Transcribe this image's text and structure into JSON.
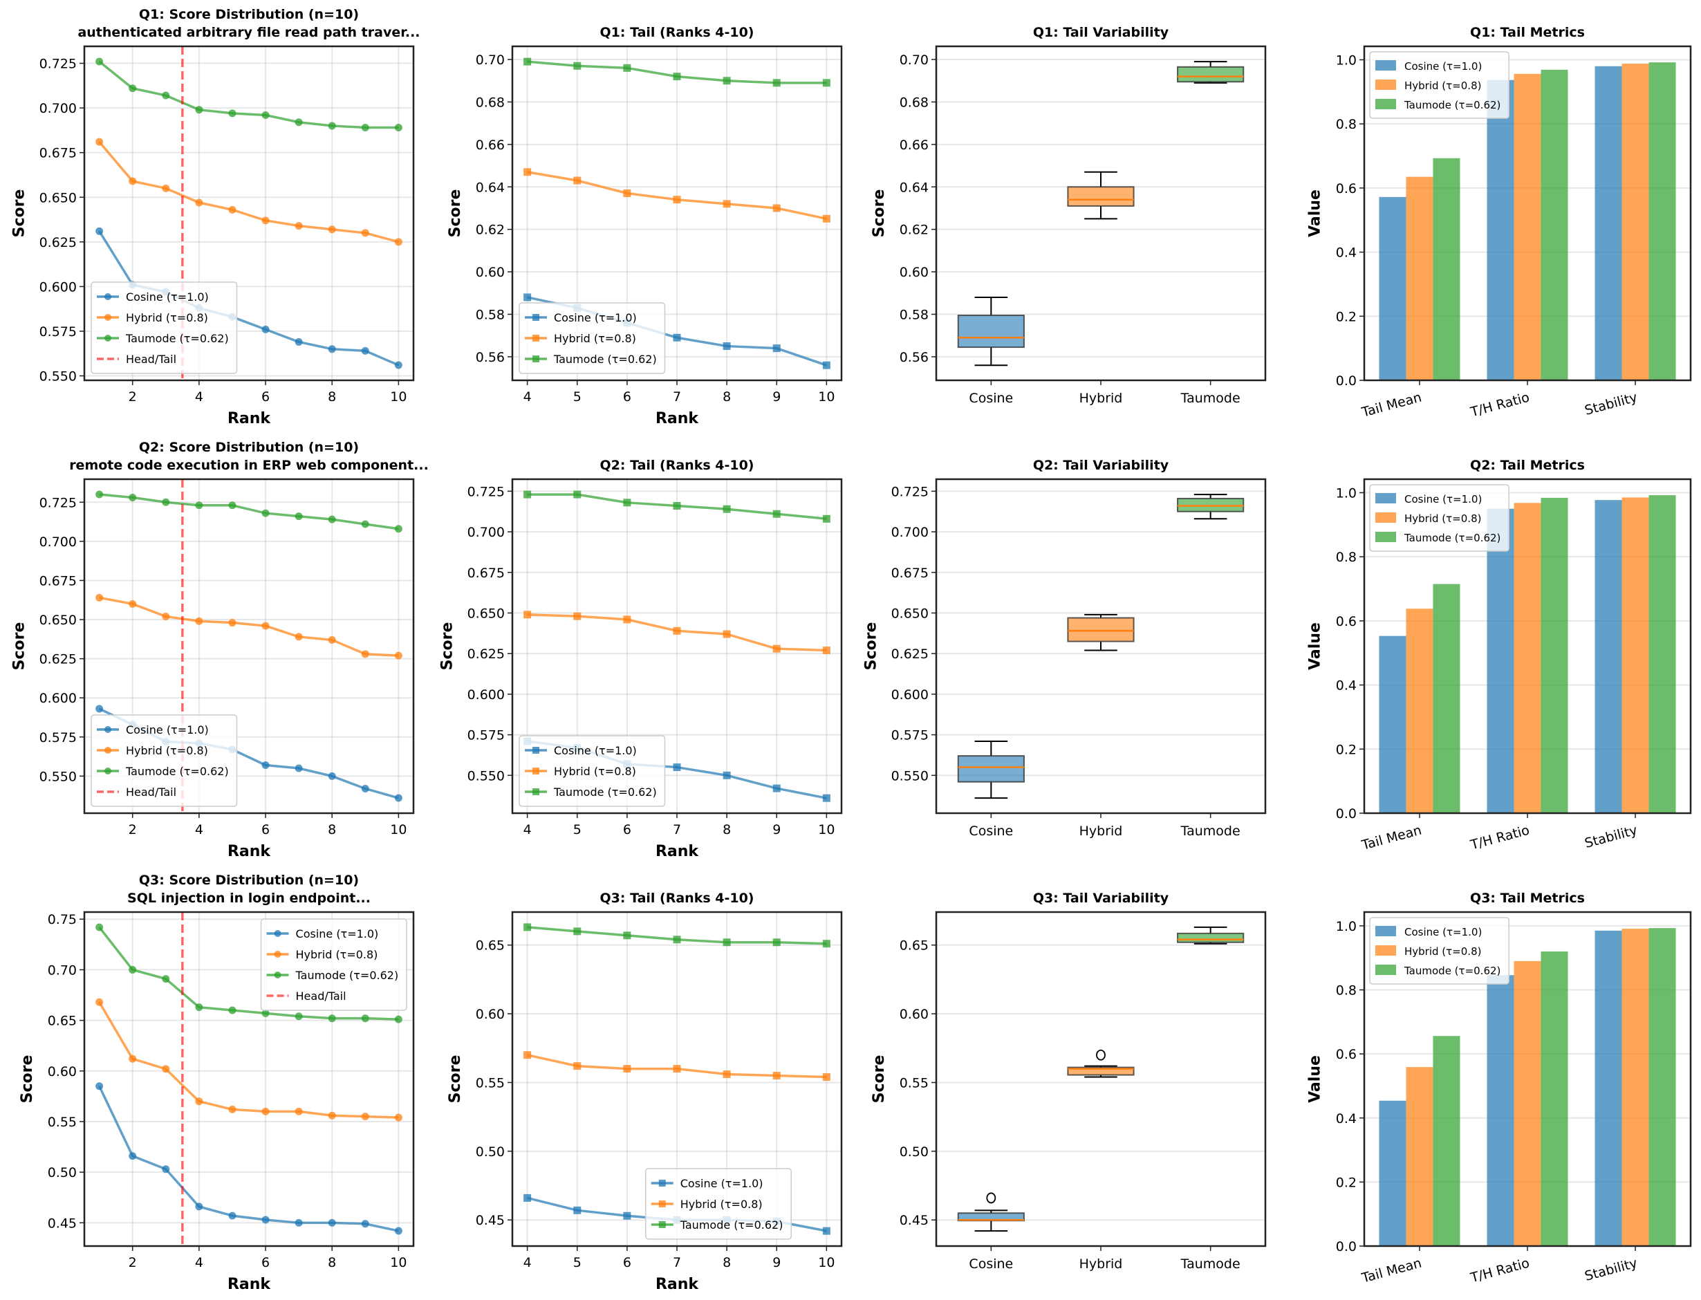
{
  "colors": {
    "cosine": "#1f77b4",
    "hybrid": "#ff7f0e",
    "taumode": "#2ca02c",
    "head_tail": "#ff0000",
    "median": "#ff7f0e"
  },
  "chart_data": [
    {
      "type": "line",
      "title": [
        "Q1: Score Distribution (n=10)",
        "authenticated arbitrary file read path traver..."
      ],
      "xlabel": "Rank",
      "ylabel": "Score",
      "xlim": [
        0.55,
        10.45
      ],
      "ylim": [
        0.5475,
        0.7345
      ],
      "grid": true,
      "legend": "lower left",
      "marker": "circle",
      "xticks": [
        2,
        4,
        6,
        8,
        10
      ],
      "yticks": [
        "0.550",
        "0.575",
        "0.600",
        "0.625",
        "0.650",
        "0.675",
        "0.700",
        "0.725"
      ],
      "vline": {
        "x": 3.5,
        "label": "Head/Tail"
      },
      "x": [
        1,
        2,
        3,
        4,
        5,
        6,
        7,
        8,
        9,
        10
      ],
      "series": [
        {
          "name": "Cosine (τ=1.0)",
          "color": "#1f77b4",
          "values": [
            0.631,
            0.601,
            0.597,
            0.588,
            0.583,
            0.576,
            0.569,
            0.565,
            0.564,
            0.556
          ]
        },
        {
          "name": "Hybrid (τ=0.8)",
          "color": "#ff7f0e",
          "values": [
            0.681,
            0.659,
            0.655,
            0.647,
            0.643,
            0.637,
            0.634,
            0.632,
            0.63,
            0.625
          ]
        },
        {
          "name": "Taumode (τ=0.62)",
          "color": "#2ca02c",
          "values": [
            0.726,
            0.711,
            0.707,
            0.699,
            0.697,
            0.696,
            0.692,
            0.69,
            0.689,
            0.689
          ]
        }
      ]
    },
    {
      "type": "line",
      "title": [
        "Q1: Tail (Ranks 4-10)"
      ],
      "xlabel": "Rank",
      "ylabel": "Score",
      "xlim": [
        3.7,
        10.3
      ],
      "ylim": [
        0.5489,
        0.7062
      ],
      "grid": true,
      "legend": "lower left",
      "marker": "square",
      "xticks": [
        4,
        5,
        6,
        7,
        8,
        9,
        10
      ],
      "yticks": [
        "0.56",
        "0.58",
        "0.60",
        "0.62",
        "0.64",
        "0.66",
        "0.68",
        "0.70"
      ],
      "x": [
        4,
        5,
        6,
        7,
        8,
        9,
        10
      ],
      "series": [
        {
          "name": "Cosine (τ=1.0)",
          "color": "#1f77b4",
          "values": [
            0.588,
            0.583,
            0.576,
            0.569,
            0.565,
            0.564,
            0.556
          ]
        },
        {
          "name": "Hybrid (τ=0.8)",
          "color": "#ff7f0e",
          "values": [
            0.647,
            0.643,
            0.637,
            0.634,
            0.632,
            0.63,
            0.625
          ]
        },
        {
          "name": "Taumode (τ=0.62)",
          "color": "#2ca02c",
          "values": [
            0.699,
            0.697,
            0.696,
            0.692,
            0.69,
            0.689,
            0.689
          ]
        }
      ]
    },
    {
      "type": "box",
      "title": [
        "Q1: Tail Variability"
      ],
      "xlabel": "",
      "ylabel": "Score",
      "xlim": [
        0.5,
        3.5
      ],
      "ylim": [
        0.5489,
        0.7062
      ],
      "grid": true,
      "yticks": [
        "0.56",
        "0.58",
        "0.60",
        "0.62",
        "0.64",
        "0.66",
        "0.68",
        "0.70"
      ],
      "categories": [
        "Cosine",
        "Hybrid",
        "Taumode"
      ],
      "series": [
        {
          "name": "Cosine",
          "color": "#1f77b4",
          "values": [
            0.588,
            0.583,
            0.576,
            0.569,
            0.565,
            0.564,
            0.556
          ]
        },
        {
          "name": "Hybrid",
          "color": "#ff7f0e",
          "values": [
            0.647,
            0.643,
            0.637,
            0.634,
            0.632,
            0.63,
            0.625
          ]
        },
        {
          "name": "Taumode",
          "color": "#2ca02c",
          "values": [
            0.699,
            0.697,
            0.696,
            0.692,
            0.69,
            0.689,
            0.689
          ]
        }
      ]
    },
    {
      "type": "bar",
      "title": [
        "Q1: Tail Metrics"
      ],
      "xlabel": "",
      "ylabel": "Value",
      "xlim": [
        -0.5125,
        2.5125
      ],
      "ylim": [
        0,
        1.042
      ],
      "grid": true,
      "legend": "upper left",
      "yticks": [
        "0.0",
        "0.2",
        "0.4",
        "0.6",
        "0.8",
        "1.0"
      ],
      "categories": [
        "Tail Mean",
        "T/H Ratio",
        "Stability"
      ],
      "series": [
        {
          "name": "Cosine (τ=1.0)",
          "color": "#1f77b4",
          "values": [
            0.572,
            0.937,
            0.98
          ]
        },
        {
          "name": "Hybrid (τ=0.8)",
          "color": "#ff7f0e",
          "values": [
            0.635,
            0.956,
            0.988
          ]
        },
        {
          "name": "Taumode (τ=0.62)",
          "color": "#2ca02c",
          "values": [
            0.693,
            0.969,
            0.992
          ]
        }
      ]
    },
    {
      "type": "line",
      "title": [
        "Q2: Score Distribution (n=10)",
        "remote code execution in ERP web component..."
      ],
      "xlabel": "Rank",
      "ylabel": "Score",
      "xlim": [
        0.55,
        10.45
      ],
      "ylim": [
        0.5263,
        0.7397
      ],
      "grid": true,
      "legend": "lower left",
      "marker": "circle",
      "xticks": [
        2,
        4,
        6,
        8,
        10
      ],
      "yticks": [
        "0.550",
        "0.575",
        "0.600",
        "0.625",
        "0.650",
        "0.675",
        "0.700",
        "0.725"
      ],
      "vline": {
        "x": 3.5,
        "label": "Head/Tail"
      },
      "x": [
        1,
        2,
        3,
        4,
        5,
        6,
        7,
        8,
        9,
        10
      ],
      "series": [
        {
          "name": "Cosine (τ=1.0)",
          "color": "#1f77b4",
          "values": [
            0.593,
            0.583,
            0.572,
            0.571,
            0.567,
            0.557,
            0.555,
            0.55,
            0.542,
            0.536
          ]
        },
        {
          "name": "Hybrid (τ=0.8)",
          "color": "#ff7f0e",
          "values": [
            0.664,
            0.66,
            0.652,
            0.649,
            0.648,
            0.646,
            0.639,
            0.637,
            0.628,
            0.627
          ]
        },
        {
          "name": "Taumode (τ=0.62)",
          "color": "#2ca02c",
          "values": [
            0.73,
            0.728,
            0.725,
            0.723,
            0.723,
            0.718,
            0.716,
            0.714,
            0.711,
            0.708
          ]
        }
      ]
    },
    {
      "type": "line",
      "title": [
        "Q2: Tail (Ranks 4-10)"
      ],
      "xlabel": "Rank",
      "ylabel": "Score",
      "xlim": [
        3.7,
        10.3
      ],
      "ylim": [
        0.5267,
        0.7324
      ],
      "grid": true,
      "legend": "lower left",
      "marker": "square",
      "xticks": [
        4,
        5,
        6,
        7,
        8,
        9,
        10
      ],
      "yticks": [
        "0.550",
        "0.575",
        "0.600",
        "0.625",
        "0.650",
        "0.675",
        "0.700",
        "0.725"
      ],
      "x": [
        4,
        5,
        6,
        7,
        8,
        9,
        10
      ],
      "series": [
        {
          "name": "Cosine (τ=1.0)",
          "color": "#1f77b4",
          "values": [
            0.571,
            0.567,
            0.557,
            0.555,
            0.55,
            0.542,
            0.536
          ]
        },
        {
          "name": "Hybrid (τ=0.8)",
          "color": "#ff7f0e",
          "values": [
            0.649,
            0.648,
            0.646,
            0.639,
            0.637,
            0.628,
            0.627
          ]
        },
        {
          "name": "Taumode (τ=0.62)",
          "color": "#2ca02c",
          "values": [
            0.723,
            0.723,
            0.718,
            0.716,
            0.714,
            0.711,
            0.708
          ]
        }
      ]
    },
    {
      "type": "box",
      "title": [
        "Q2: Tail Variability"
      ],
      "xlabel": "",
      "ylabel": "Score",
      "xlim": [
        0.5,
        3.5
      ],
      "ylim": [
        0.5267,
        0.7324
      ],
      "grid": true,
      "yticks": [
        "0.550",
        "0.575",
        "0.600",
        "0.625",
        "0.650",
        "0.675",
        "0.700",
        "0.725"
      ],
      "categories": [
        "Cosine",
        "Hybrid",
        "Taumode"
      ],
      "series": [
        {
          "name": "Cosine",
          "color": "#1f77b4",
          "values": [
            0.571,
            0.567,
            0.557,
            0.555,
            0.55,
            0.542,
            0.536
          ]
        },
        {
          "name": "Hybrid",
          "color": "#ff7f0e",
          "values": [
            0.649,
            0.648,
            0.646,
            0.639,
            0.637,
            0.628,
            0.627
          ]
        },
        {
          "name": "Taumode",
          "color": "#2ca02c",
          "values": [
            0.723,
            0.723,
            0.718,
            0.716,
            0.714,
            0.711,
            0.708
          ]
        }
      ]
    },
    {
      "type": "bar",
      "title": [
        "Q2: Tail Metrics"
      ],
      "xlabel": "",
      "ylabel": "Value",
      "xlim": [
        -0.5125,
        2.5125
      ],
      "ylim": [
        0,
        1.042
      ],
      "grid": true,
      "legend": "upper left",
      "yticks": [
        "0.0",
        "0.2",
        "0.4",
        "0.6",
        "0.8",
        "1.0"
      ],
      "categories": [
        "Tail Mean",
        "T/H Ratio",
        "Stability"
      ],
      "series": [
        {
          "name": "Cosine (τ=1.0)",
          "color": "#1f77b4",
          "values": [
            0.553,
            0.95,
            0.977
          ]
        },
        {
          "name": "Hybrid (τ=0.8)",
          "color": "#ff7f0e",
          "values": [
            0.638,
            0.968,
            0.985
          ]
        },
        {
          "name": "Taumode (τ=0.62)",
          "color": "#2ca02c",
          "values": [
            0.715,
            0.984,
            0.992
          ]
        }
      ]
    },
    {
      "type": "line",
      "title": [
        "Q3: Score Distribution (n=10)",
        "SQL injection in login endpoint..."
      ],
      "xlabel": "Rank",
      "ylabel": "Score",
      "xlim": [
        0.55,
        10.45
      ],
      "ylim": [
        0.427,
        0.757
      ],
      "grid": true,
      "legend": "upper right",
      "marker": "circle",
      "xticks": [
        2,
        4,
        6,
        8,
        10
      ],
      "yticks": [
        "0.45",
        "0.50",
        "0.55",
        "0.60",
        "0.65",
        "0.70",
        "0.75"
      ],
      "vline": {
        "x": 3.5,
        "label": "Head/Tail"
      },
      "x": [
        1,
        2,
        3,
        4,
        5,
        6,
        7,
        8,
        9,
        10
      ],
      "series": [
        {
          "name": "Cosine (τ=1.0)",
          "color": "#1f77b4",
          "values": [
            0.585,
            0.516,
            0.503,
            0.466,
            0.457,
            0.453,
            0.45,
            0.45,
            0.449,
            0.442
          ]
        },
        {
          "name": "Hybrid (τ=0.8)",
          "color": "#ff7f0e",
          "values": [
            0.668,
            0.612,
            0.602,
            0.57,
            0.562,
            0.56,
            0.56,
            0.556,
            0.555,
            0.554
          ]
        },
        {
          "name": "Taumode (τ=0.62)",
          "color": "#2ca02c",
          "values": [
            0.742,
            0.7,
            0.691,
            0.663,
            0.66,
            0.657,
            0.654,
            0.652,
            0.652,
            0.651
          ]
        }
      ]
    },
    {
      "type": "line",
      "title": [
        "Q3: Tail (Ranks 4-10)"
      ],
      "xlabel": "Rank",
      "ylabel": "Score",
      "xlim": [
        3.7,
        10.3
      ],
      "ylim": [
        0.431,
        0.674
      ],
      "grid": true,
      "legend": "lower center",
      "marker": "square",
      "xticks": [
        4,
        5,
        6,
        7,
        8,
        9,
        10
      ],
      "yticks": [
        "0.45",
        "0.50",
        "0.55",
        "0.60",
        "0.65"
      ],
      "x": [
        4,
        5,
        6,
        7,
        8,
        9,
        10
      ],
      "series": [
        {
          "name": "Cosine (τ=1.0)",
          "color": "#1f77b4",
          "values": [
            0.466,
            0.457,
            0.453,
            0.45,
            0.45,
            0.449,
            0.442
          ]
        },
        {
          "name": "Hybrid (τ=0.8)",
          "color": "#ff7f0e",
          "values": [
            0.57,
            0.562,
            0.56,
            0.56,
            0.556,
            0.555,
            0.554
          ]
        },
        {
          "name": "Taumode (τ=0.62)",
          "color": "#2ca02c",
          "values": [
            0.663,
            0.66,
            0.657,
            0.654,
            0.652,
            0.652,
            0.651
          ]
        }
      ]
    },
    {
      "type": "box",
      "title": [
        "Q3: Tail Variability"
      ],
      "xlabel": "",
      "ylabel": "Score",
      "xlim": [
        0.5,
        3.5
      ],
      "ylim": [
        0.431,
        0.674
      ],
      "grid": true,
      "yticks": [
        "0.45",
        "0.50",
        "0.55",
        "0.60",
        "0.65"
      ],
      "categories": [
        "Cosine",
        "Hybrid",
        "Taumode"
      ],
      "series": [
        {
          "name": "Cosine",
          "color": "#1f77b4",
          "values": [
            0.466,
            0.457,
            0.453,
            0.45,
            0.45,
            0.449,
            0.442
          ]
        },
        {
          "name": "Hybrid",
          "color": "#ff7f0e",
          "values": [
            0.57,
            0.562,
            0.56,
            0.56,
            0.556,
            0.555,
            0.554
          ]
        },
        {
          "name": "Taumode",
          "color": "#2ca02c",
          "values": [
            0.663,
            0.66,
            0.657,
            0.654,
            0.652,
            0.652,
            0.651
          ]
        }
      ]
    },
    {
      "type": "bar",
      "title": [
        "Q3: Tail Metrics"
      ],
      "xlabel": "",
      "ylabel": "Value",
      "xlim": [
        -0.5125,
        2.5125
      ],
      "ylim": [
        0,
        1.043
      ],
      "grid": true,
      "legend": "upper left",
      "yticks": [
        "0.0",
        "0.2",
        "0.4",
        "0.6",
        "0.8",
        "1.0"
      ],
      "categories": [
        "Tail Mean",
        "T/H Ratio",
        "Stability"
      ],
      "series": [
        {
          "name": "Cosine (τ=1.0)",
          "color": "#1f77b4",
          "values": [
            0.454,
            0.846,
            0.985
          ]
        },
        {
          "name": "Hybrid (τ=0.8)",
          "color": "#ff7f0e",
          "values": [
            0.559,
            0.89,
            0.991
          ]
        },
        {
          "name": "Taumode (τ=0.62)",
          "color": "#2ca02c",
          "values": [
            0.656,
            0.92,
            0.993
          ]
        }
      ]
    }
  ]
}
